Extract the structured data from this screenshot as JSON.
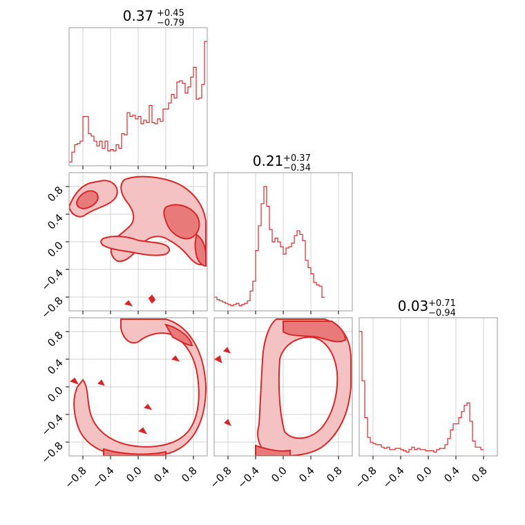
{
  "chart_data": {
    "type": "corner",
    "color": "#d62728",
    "fill_color": "#f4c2c2",
    "grid": true,
    "range": [
      -1,
      1
    ],
    "tick_values": [
      -0.8,
      -0.4,
      0.0,
      0.4,
      0.8
    ],
    "tick_labels": [
      "−0.8",
      "−0.4",
      "0.0",
      "0.4",
      "0.8"
    ],
    "titles": [
      {
        "value": "0.37",
        "plus": "+0.45",
        "minus": "−0.79"
      },
      {
        "value": "0.21",
        "plus": "+0.37",
        "minus": "−0.34"
      },
      {
        "value": "0.03",
        "plus": "+0.71",
        "minus": "−0.94"
      }
    ],
    "histograms": [
      {
        "bin_width": 0.04,
        "x_start": -1.0,
        "counts": [
          2,
          10,
          16,
          17,
          19,
          39,
          39,
          25,
          23,
          19,
          15,
          19,
          13,
          19,
          11,
          12,
          11,
          16,
          13,
          25,
          24,
          42,
          39,
          40,
          37,
          39,
          33,
          36,
          34,
          48,
          34,
          33,
          37,
          35,
          45,
          45,
          50,
          57,
          54,
          67,
          68,
          66,
          58,
          63,
          71,
          79,
          53,
          54,
          65,
          100
        ]
      },
      {
        "bin_width": 0.04,
        "x_start": -1.0,
        "counts": [
          10,
          8,
          7,
          6,
          5,
          4,
          3,
          4,
          5,
          3,
          4,
          5,
          7,
          15,
          23,
          48,
          68,
          86,
          100,
          84,
          65,
          55,
          58,
          55,
          51,
          45,
          50,
          51,
          54,
          60,
          64,
          61,
          56,
          40,
          34,
          29,
          22,
          20,
          19,
          10
        ]
      },
      {
        "bin_width": 0.04,
        "x_start": -1.0,
        "counts": [
          100,
          60,
          30,
          14,
          10,
          9,
          8,
          8,
          6,
          5,
          6,
          4,
          4,
          5,
          5,
          4,
          3,
          2,
          4,
          6,
          4,
          5,
          4,
          4,
          3,
          3,
          3,
          2,
          4,
          5,
          5,
          8,
          13,
          20,
          25,
          25,
          30,
          35,
          40,
          42,
          27,
          11,
          6,
          6,
          4
        ]
      }
    ],
    "pairs": [
      {
        "x_param": 0,
        "y_param": 1,
        "description": "scattered blobs, ring-like boundary"
      },
      {
        "x_param": 0,
        "y_param": 2,
        "description": "ring contour"
      },
      {
        "x_param": 1,
        "y_param": 2,
        "description": "ring contour"
      }
    ]
  }
}
